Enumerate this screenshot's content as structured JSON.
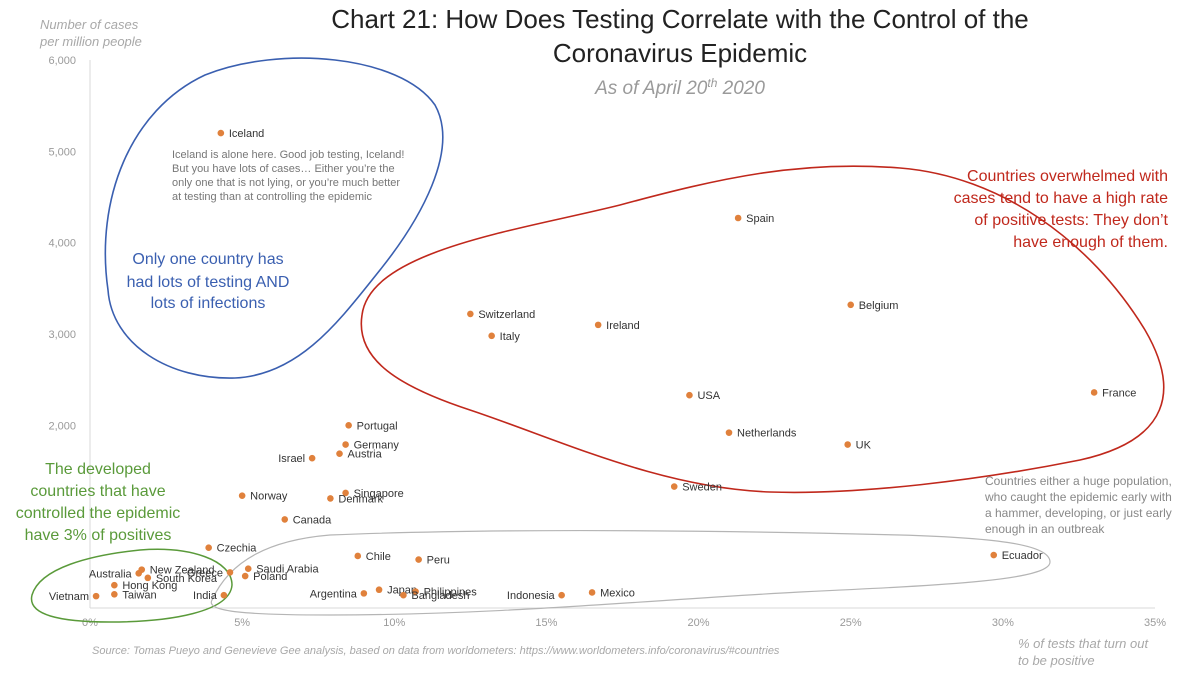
{
  "chart_data": {
    "type": "scatter",
    "title_line1": "Chart 21: How Does Testing Correlate with the Control of the",
    "title_line2": "Coronavirus Epidemic",
    "subtitle_pre": "As of April 20",
    "subtitle_sup": "th",
    "subtitle_post": " 2020",
    "ylabel_line1": "Number of cases",
    "ylabel_line2": "per million people",
    "xlabel_line1": "% of tests that turn out",
    "xlabel_line2": "to be positive",
    "source": "Source: Tomas Pueyo and Genevieve Gee analysis, based on data from worldometers: https://www.worldometers.info/coronavirus/#countries",
    "xlim": [
      0,
      35
    ],
    "ylim": [
      0,
      6000
    ],
    "x_ticks": [
      {
        "value": 0,
        "label": "0%"
      },
      {
        "value": 5,
        "label": "5%"
      },
      {
        "value": 10,
        "label": "10%"
      },
      {
        "value": 15,
        "label": "15%"
      },
      {
        "value": 20,
        "label": "20%"
      },
      {
        "value": 25,
        "label": "25%"
      },
      {
        "value": 30,
        "label": "30%"
      },
      {
        "value": 35,
        "label": "35%"
      }
    ],
    "y_ticks": [
      {
        "value": 2000,
        "label": "2,000"
      },
      {
        "value": 3000,
        "label": "3,000"
      },
      {
        "value": 4000,
        "label": "4,000"
      },
      {
        "value": 5000,
        "label": "5,000"
      },
      {
        "value": 6000,
        "label": "6,000"
      }
    ],
    "grid": false,
    "point_color": "#e0813c",
    "points": [
      {
        "name": "Iceland",
        "x": 4.3,
        "y": 5200,
        "label_side": "right"
      },
      {
        "name": "Spain",
        "x": 21.3,
        "y": 4270,
        "label_side": "right"
      },
      {
        "name": "Belgium",
        "x": 25.0,
        "y": 3320,
        "label_side": "right"
      },
      {
        "name": "Switzerland",
        "x": 12.5,
        "y": 3220,
        "label_side": "right"
      },
      {
        "name": "Ireland",
        "x": 16.7,
        "y": 3100,
        "label_side": "right"
      },
      {
        "name": "Italy",
        "x": 13.2,
        "y": 2980,
        "label_side": "right"
      },
      {
        "name": "France",
        "x": 33.0,
        "y": 2360,
        "label_side": "right"
      },
      {
        "name": "USA",
        "x": 19.7,
        "y": 2330,
        "label_side": "right"
      },
      {
        "name": "Netherlands",
        "x": 21.0,
        "y": 1920,
        "label_side": "right"
      },
      {
        "name": "UK",
        "x": 24.9,
        "y": 1790,
        "label_side": "right"
      },
      {
        "name": "Sweden",
        "x": 19.2,
        "y": 1330,
        "label_side": "right"
      },
      {
        "name": "Portugal",
        "x": 8.5,
        "y": 2000,
        "label_side": "right"
      },
      {
        "name": "Germany",
        "x": 8.4,
        "y": 1790,
        "label_side": "right"
      },
      {
        "name": "Austria",
        "x": 8.2,
        "y": 1690,
        "label_side": "right"
      },
      {
        "name": "Israel",
        "x": 7.3,
        "y": 1640,
        "label_side": "left"
      },
      {
        "name": "Singapore",
        "x": 8.4,
        "y": 1260,
        "label_side": "right"
      },
      {
        "name": "Denmark",
        "x": 7.9,
        "y": 1200,
        "label_side": "right"
      },
      {
        "name": "Norway",
        "x": 5.0,
        "y": 1230,
        "label_side": "right"
      },
      {
        "name": "Canada",
        "x": 6.4,
        "y": 970,
        "label_side": "right"
      },
      {
        "name": "Czechia",
        "x": 3.9,
        "y": 660,
        "label_side": "right"
      },
      {
        "name": "Chile",
        "x": 8.8,
        "y": 570,
        "label_side": "right"
      },
      {
        "name": "Peru",
        "x": 10.8,
        "y": 530,
        "label_side": "right"
      },
      {
        "name": "Ecuador",
        "x": 29.7,
        "y": 580,
        "label_side": "right"
      },
      {
        "name": "Saudi Arabia",
        "x": 5.2,
        "y": 430,
        "label_side": "right"
      },
      {
        "name": "Greece",
        "x": 4.6,
        "y": 390,
        "label_side": "left"
      },
      {
        "name": "Poland",
        "x": 5.1,
        "y": 350,
        "label_side": "right"
      },
      {
        "name": "New Zealand",
        "x": 1.7,
        "y": 420,
        "label_side": "right"
      },
      {
        "name": "Australia",
        "x": 1.6,
        "y": 380,
        "label_side": "left"
      },
      {
        "name": "South Korea",
        "x": 1.9,
        "y": 330,
        "label_side": "right"
      },
      {
        "name": "Hong Kong",
        "x": 0.8,
        "y": 250,
        "label_side": "right"
      },
      {
        "name": "Taiwan",
        "x": 0.8,
        "y": 150,
        "label_side": "right"
      },
      {
        "name": "Vietnam",
        "x": 0.2,
        "y": 130,
        "label_side": "left"
      },
      {
        "name": "India",
        "x": 4.4,
        "y": 140,
        "label_side": "left"
      },
      {
        "name": "Japan",
        "x": 9.5,
        "y": 200,
        "label_side": "right"
      },
      {
        "name": "Argentina",
        "x": 9.0,
        "y": 160,
        "label_side": "left"
      },
      {
        "name": "Philippines",
        "x": 10.7,
        "y": 180,
        "label_side": "right"
      },
      {
        "name": "Bangladesh",
        "x": 10.3,
        "y": 140,
        "label_side": "right"
      },
      {
        "name": "Indonesia",
        "x": 15.5,
        "y": 140,
        "label_side": "left"
      },
      {
        "name": "Mexico",
        "x": 16.5,
        "y": 170,
        "label_side": "right"
      }
    ],
    "annotations": {
      "iceland_note": [
        "Iceland is alone here. Good job testing, Iceland!",
        "But you have lots of cases… Either you’re the",
        "only one that is not lying, or you’re much better",
        "at testing than at controlling the epidemic"
      ],
      "blue_note": [
        "Only one country has",
        "had lots of testing AND",
        "lots of infections"
      ],
      "red_note": [
        "Countries overwhelmed with",
        "cases tend to have a high rate",
        "of positive tests: They don’t",
        "have enough of them."
      ],
      "green_note": [
        "The developed",
        "countries that have",
        "controlled the epidemic",
        "have 3% of positives"
      ],
      "gray_note": [
        "Countries either a huge population,",
        "who caught the epidemic early with",
        "a hammer, developing, or just early",
        "enough in an outbreak"
      ]
    },
    "colors": {
      "blue": "#3a5fb0",
      "red": "#c0281c",
      "green": "#5a9a3a",
      "gray": "#b5b5b5"
    }
  }
}
